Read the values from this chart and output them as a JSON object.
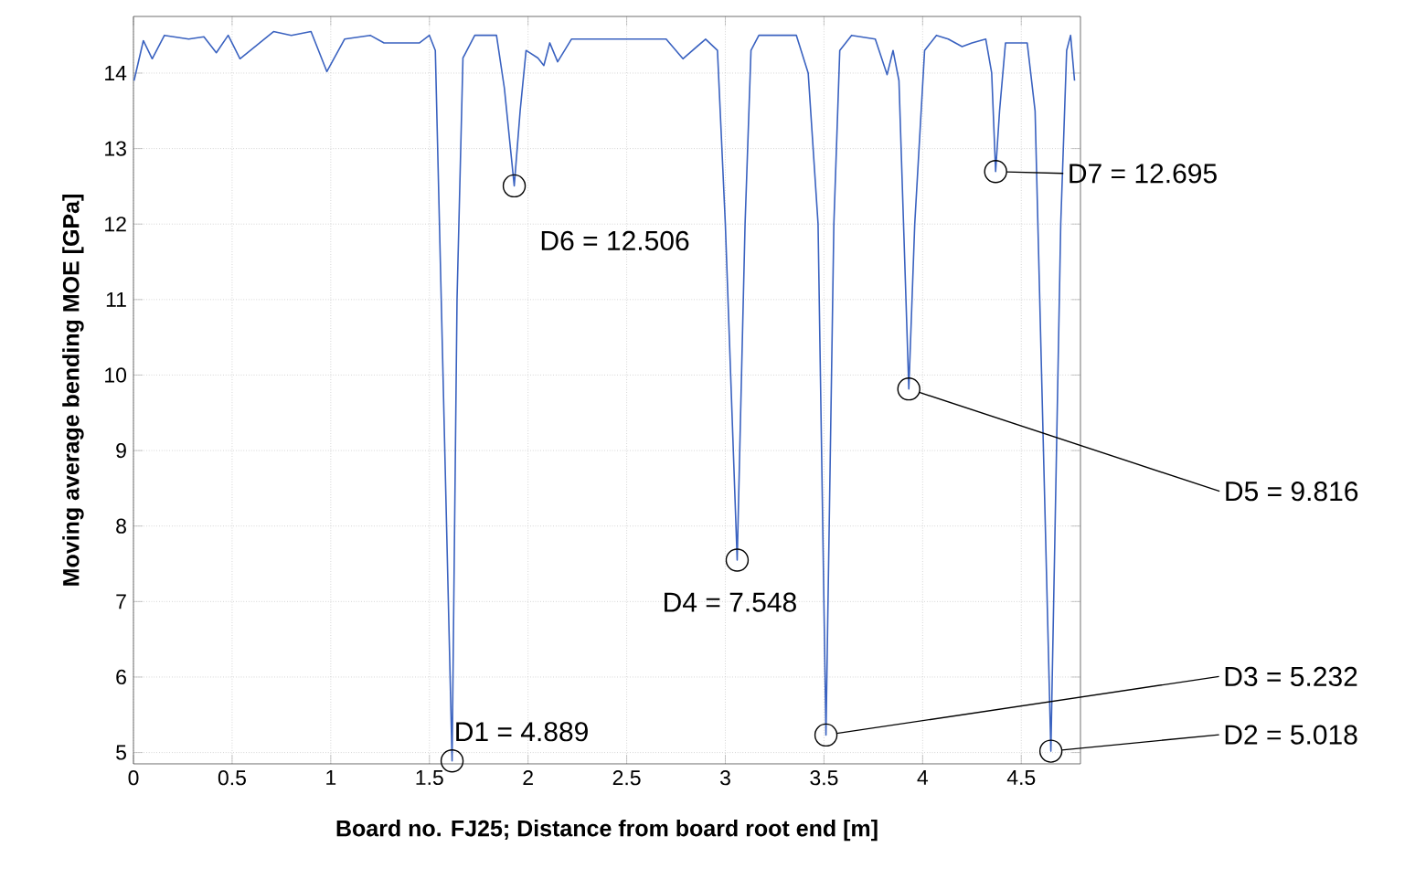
{
  "chart_data": {
    "type": "line",
    "xlabel": "Board no. FJ25; Distance from board root end [m]",
    "ylabel": "Moving average bending MOE [GPa]",
    "xlim": [
      0,
      4.8
    ],
    "ylim": [
      4.85,
      14.75
    ],
    "xticks": [
      0,
      0.5,
      1,
      1.5,
      2,
      2.5,
      3,
      3.5,
      4,
      4.5
    ],
    "yticks": [
      5,
      6,
      7,
      8,
      9,
      10,
      11,
      12,
      13,
      14
    ],
    "grid": true,
    "marker": "none",
    "line_style": "solid",
    "series": [
      {
        "color": "#3a62c0",
        "x": [
          0.003,
          0.05,
          0.095,
          0.157,
          0.28,
          0.357,
          0.42,
          0.48,
          0.54,
          0.71,
          0.8,
          0.9,
          0.98,
          1.07,
          1.2,
          1.27,
          1.45,
          1.5,
          1.53,
          1.56,
          1.615,
          1.64,
          1.67,
          1.73,
          1.84,
          1.88,
          1.93,
          1.96,
          1.99,
          2.05,
          2.08,
          2.11,
          2.15,
          2.22,
          2.34,
          2.5,
          2.7,
          2.785,
          2.9,
          2.96,
          3.0,
          3.06,
          3.1,
          3.13,
          3.17,
          3.36,
          3.42,
          3.47,
          3.51,
          3.55,
          3.58,
          3.64,
          3.76,
          3.82,
          3.85,
          3.88,
          3.93,
          3.96,
          4.01,
          4.07,
          4.13,
          4.2,
          4.25,
          4.32,
          4.35,
          4.37,
          4.39,
          4.42,
          4.53,
          4.57,
          4.65,
          4.7,
          4.73,
          4.75,
          4.77
        ],
        "values": [
          13.9,
          14.43,
          14.19,
          14.5,
          14.45,
          14.48,
          14.27,
          14.5,
          14.19,
          14.55,
          14.5,
          14.55,
          14.02,
          14.45,
          14.5,
          14.4,
          14.4,
          14.5,
          14.3,
          11,
          4.889,
          11,
          14.2,
          14.5,
          14.5,
          13.8,
          12.506,
          13.5,
          14.3,
          14.2,
          14.1,
          14.4,
          14.15,
          14.45,
          14.45,
          14.45,
          14.45,
          14.19,
          14.45,
          14.3,
          12,
          7.548,
          12,
          14.3,
          14.5,
          14.5,
          14.0,
          12,
          5.232,
          12,
          14.3,
          14.5,
          14.45,
          13.98,
          14.3,
          13.9,
          9.816,
          12,
          14.3,
          14.5,
          14.45,
          14.35,
          14.4,
          14.45,
          14.0,
          12.695,
          13.5,
          14.4,
          14.4,
          13.5,
          5.018,
          12,
          14.3,
          14.5,
          13.9
        ]
      }
    ],
    "annotations": [
      {
        "text": "D1 = 4.889",
        "x": 1.615,
        "y": 4.889
      },
      {
        "text": "D2 = 5.018",
        "x": 4.65,
        "y": 5.018
      },
      {
        "text": "D3 = 5.232",
        "x": 3.51,
        "y": 5.232
      },
      {
        "text": "D4 = 7.548",
        "x": 3.06,
        "y": 7.548
      },
      {
        "text": "D5 = 9.816",
        "x": 3.93,
        "y": 9.816
      },
      {
        "text": "D6 = 12.506",
        "x": 1.93,
        "y": 12.506
      },
      {
        "text": "D7 = 12.695",
        "x": 4.37,
        "y": 12.695
      }
    ]
  }
}
